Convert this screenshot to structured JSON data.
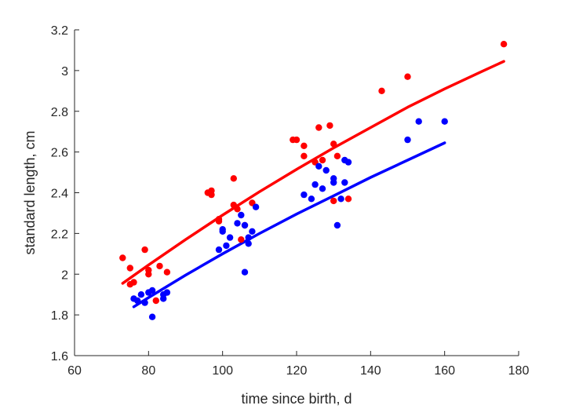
{
  "chart_data": {
    "type": "scatter",
    "title": "",
    "xlabel": "time since birth, d",
    "ylabel": "standard length, cm",
    "xlim": [
      60,
      180
    ],
    "ylim": [
      1.6,
      3.2
    ],
    "xticks": [
      "60",
      "80",
      "100",
      "120",
      "140",
      "160",
      "180"
    ],
    "yticks": [
      "1.6",
      "1.8",
      "2",
      "2.2",
      "2.4",
      "2.6",
      "2.8",
      "3",
      "3.2"
    ],
    "grid": false,
    "legend": "none",
    "series": [
      {
        "color": "#ff0000",
        "points": [
          [
            73,
            2.08
          ],
          [
            75,
            2.03
          ],
          [
            75,
            1.95
          ],
          [
            76,
            1.96
          ],
          [
            79,
            2.12
          ],
          [
            80,
            2.02
          ],
          [
            80,
            2.0
          ],
          [
            82,
            1.87
          ],
          [
            83,
            2.04
          ],
          [
            85,
            2.01
          ],
          [
            96,
            2.4
          ],
          [
            97,
            2.41
          ],
          [
            97,
            2.39
          ],
          [
            99,
            2.27
          ],
          [
            99,
            2.26
          ],
          [
            103,
            2.47
          ],
          [
            103,
            2.34
          ],
          [
            104,
            2.32
          ],
          [
            105,
            2.17
          ],
          [
            106,
            2.24
          ],
          [
            108,
            2.35
          ],
          [
            119,
            2.66
          ],
          [
            120,
            2.66
          ],
          [
            122,
            2.63
          ],
          [
            122,
            2.58
          ],
          [
            125,
            2.55
          ],
          [
            126,
            2.72
          ],
          [
            127,
            2.56
          ],
          [
            129,
            2.73
          ],
          [
            130,
            2.64
          ],
          [
            130,
            2.36
          ],
          [
            131,
            2.58
          ],
          [
            134,
            2.37
          ],
          [
            143,
            2.9
          ],
          [
            150,
            2.97
          ],
          [
            176,
            3.13
          ]
        ],
        "fit": [
          [
            73,
            1.955
          ],
          [
            80,
            2.045
          ],
          [
            90,
            2.17
          ],
          [
            100,
            2.29
          ],
          [
            110,
            2.405
          ],
          [
            120,
            2.515
          ],
          [
            130,
            2.62
          ],
          [
            140,
            2.72
          ],
          [
            150,
            2.82
          ],
          [
            160,
            2.91
          ],
          [
            170,
            2.995
          ],
          [
            176,
            3.045
          ]
        ]
      },
      {
        "color": "#0000ff",
        "points": [
          [
            76,
            1.88
          ],
          [
            77,
            1.87
          ],
          [
            78,
            1.9
          ],
          [
            79,
            1.86
          ],
          [
            80,
            1.91
          ],
          [
            81,
            1.92
          ],
          [
            81,
            1.79
          ],
          [
            84,
            1.88
          ],
          [
            84,
            1.9
          ],
          [
            85,
            1.91
          ],
          [
            99,
            2.12
          ],
          [
            100,
            2.22
          ],
          [
            100,
            2.21
          ],
          [
            101,
            2.14
          ],
          [
            102,
            2.18
          ],
          [
            104,
            2.25
          ],
          [
            105,
            2.29
          ],
          [
            106,
            2.24
          ],
          [
            106,
            2.01
          ],
          [
            107,
            2.18
          ],
          [
            107,
            2.15
          ],
          [
            108,
            2.21
          ],
          [
            109,
            2.33
          ],
          [
            122,
            2.39
          ],
          [
            124,
            2.37
          ],
          [
            125,
            2.44
          ],
          [
            126,
            2.53
          ],
          [
            127,
            2.42
          ],
          [
            128,
            2.51
          ],
          [
            130,
            2.47
          ],
          [
            130,
            2.45
          ],
          [
            131,
            2.24
          ],
          [
            132,
            2.37
          ],
          [
            133,
            2.56
          ],
          [
            133,
            2.45
          ],
          [
            134,
            2.55
          ],
          [
            150,
            2.66
          ],
          [
            153,
            2.75
          ],
          [
            160,
            2.75
          ]
        ],
        "fit": [
          [
            76,
            1.84
          ],
          [
            80,
            1.885
          ],
          [
            90,
            1.995
          ],
          [
            100,
            2.1
          ],
          [
            110,
            2.2
          ],
          [
            120,
            2.295
          ],
          [
            130,
            2.385
          ],
          [
            140,
            2.475
          ],
          [
            150,
            2.56
          ],
          [
            160,
            2.645
          ]
        ]
      }
    ]
  }
}
